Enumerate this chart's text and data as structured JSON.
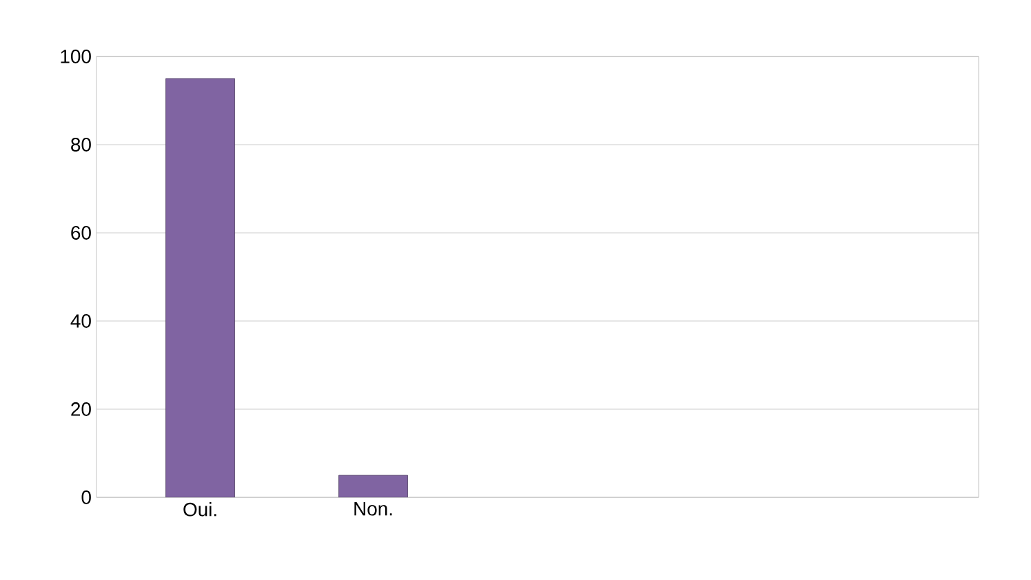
{
  "chart_data": {
    "type": "bar",
    "categories": [
      "Oui.",
      "Non."
    ],
    "values": [
      95,
      5
    ],
    "color": "#8064a2",
    "ylim": [
      0,
      100
    ],
    "yticks": [
      0,
      20,
      40,
      60,
      80,
      100
    ],
    "grid": "y"
  }
}
